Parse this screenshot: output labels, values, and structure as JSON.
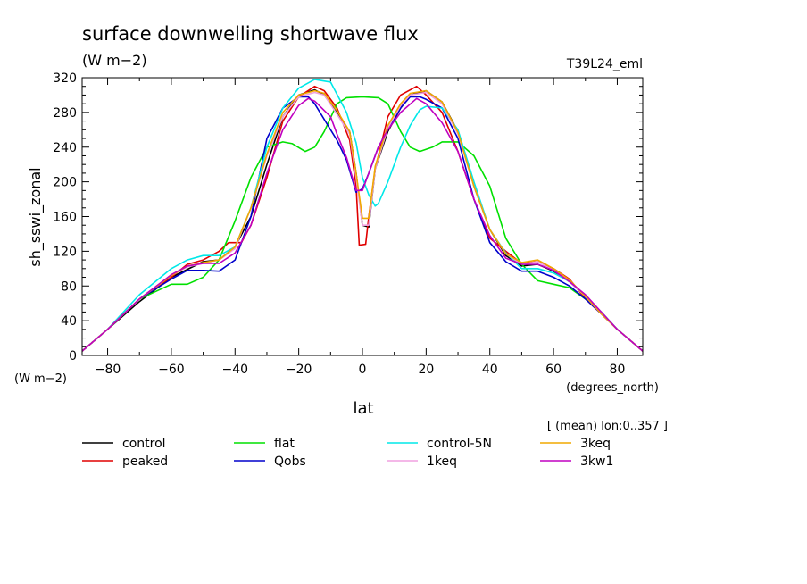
{
  "title": "surface downwelling shortwave flux",
  "units": "(W m−2)",
  "run_id": "T39L24_eml",
  "ylabel": "sh_sswi_zonal",
  "y_units": "(W m−2)",
  "xlabel": "lat",
  "x_units": "(degrees_north)",
  "mean_note": "[ (mean) lon:0..357 ]",
  "chart_data": {
    "type": "line",
    "title": "surface downwelling shortwave flux",
    "xlabel": "lat",
    "ylabel": "sh_sswi_zonal",
    "xlim": [
      -88,
      88
    ],
    "ylim": [
      0,
      320
    ],
    "xticks": [
      -80,
      -60,
      -40,
      -20,
      0,
      20,
      40,
      60,
      80
    ],
    "yticks": [
      0,
      40,
      80,
      120,
      160,
      200,
      240,
      280,
      320
    ],
    "grid": false,
    "legend_position": "bottom",
    "series": [
      {
        "name": "control",
        "color": "#000000",
        "x": [
          -88,
          -80,
          -70,
          -60,
          -50,
          -45,
          -40,
          -35,
          -30,
          -25,
          -20,
          -15,
          -12,
          -8,
          -4,
          -2,
          0,
          2,
          4,
          8,
          12,
          15,
          20,
          25,
          30,
          35,
          40,
          45,
          50,
          55,
          60,
          65,
          70,
          75,
          80,
          88
        ],
        "y": [
          5,
          30,
          62,
          90,
          108,
          110,
          125,
          160,
          220,
          275,
          300,
          306,
          300,
          280,
          258,
          210,
          150,
          148,
          215,
          258,
          285,
          300,
          305,
          292,
          258,
          195,
          145,
          115,
          103,
          105,
          97,
          85,
          68,
          48,
          30,
          5
        ]
      },
      {
        "name": "peaked",
        "color": "#e00000",
        "x": [
          -88,
          -80,
          -70,
          -60,
          -55,
          -50,
          -45,
          -42,
          -38,
          -35,
          -30,
          -25,
          -20,
          -15,
          -12,
          -8,
          -4,
          -2,
          -1,
          1,
          2,
          4,
          8,
          12,
          17,
          20,
          25,
          30,
          35,
          40,
          45,
          50,
          55,
          60,
          65,
          70,
          75,
          80,
          88
        ],
        "y": [
          5,
          30,
          65,
          90,
          105,
          110,
          120,
          130,
          130,
          150,
          205,
          270,
          298,
          310,
          305,
          285,
          248,
          195,
          127,
          128,
          160,
          215,
          275,
          300,
          310,
          300,
          280,
          235,
          180,
          135,
          120,
          106,
          108,
          100,
          88,
          65,
          48,
          30,
          5
        ]
      },
      {
        "name": "flat",
        "color": "#00e000",
        "x": [
          -88,
          -80,
          -70,
          -60,
          -55,
          -50,
          -45,
          -40,
          -35,
          -30,
          -25,
          -22,
          -18,
          -15,
          -12,
          -8,
          -5,
          0,
          5,
          8,
          12,
          15,
          18,
          22,
          25,
          30,
          35,
          40,
          45,
          50,
          55,
          60,
          65,
          70,
          75,
          80,
          88
        ],
        "y": [
          5,
          30,
          65,
          82,
          82,
          90,
          110,
          155,
          205,
          240,
          246,
          244,
          235,
          240,
          258,
          290,
          297,
          298,
          297,
          290,
          258,
          240,
          235,
          240,
          246,
          246,
          230,
          195,
          135,
          105,
          86,
          82,
          78,
          65,
          50,
          30,
          5
        ]
      },
      {
        "name": "Qobs",
        "color": "#0000cc",
        "x": [
          -88,
          -80,
          -70,
          -60,
          -55,
          -50,
          -45,
          -40,
          -35,
          -30,
          -25,
          -20,
          -17,
          -15,
          -10,
          -8,
          -5,
          -2,
          0,
          2,
          5,
          8,
          12,
          15,
          18,
          20,
          25,
          30,
          35,
          40,
          45,
          50,
          55,
          60,
          65,
          70,
          75,
          80,
          88
        ],
        "y": [
          5,
          30,
          65,
          88,
          98,
          98,
          97,
          110,
          160,
          250,
          285,
          298,
          298,
          290,
          260,
          248,
          225,
          188,
          192,
          210,
          240,
          260,
          285,
          298,
          298,
          295,
          285,
          250,
          180,
          130,
          108,
          97,
          97,
          90,
          80,
          65,
          48,
          30,
          5
        ]
      },
      {
        "name": "control-5N",
        "color": "#00e8e8",
        "x": [
          -88,
          -80,
          -70,
          -60,
          -55,
          -50,
          -45,
          -40,
          -35,
          -30,
          -25,
          -20,
          -15,
          -10,
          -5,
          -2,
          0,
          2,
          4,
          5,
          8,
          12,
          15,
          18,
          20,
          25,
          30,
          35,
          40,
          45,
          50,
          55,
          60,
          65,
          70,
          75,
          80,
          88
        ],
        "y": [
          5,
          30,
          70,
          100,
          110,
          115,
          115,
          125,
          170,
          240,
          285,
          308,
          318,
          315,
          280,
          245,
          205,
          185,
          172,
          175,
          200,
          240,
          265,
          283,
          287,
          285,
          260,
          200,
          145,
          118,
          100,
          100,
          95,
          85,
          68,
          50,
          30,
          5
        ]
      },
      {
        "name": "1keq",
        "color": "#f0a0e0",
        "x": [
          -88,
          -80,
          -70,
          -60,
          -55,
          -50,
          -45,
          -40,
          -35,
          -30,
          -25,
          -20,
          -15,
          -12,
          -8,
          -4,
          -2,
          0,
          2,
          4,
          8,
          12,
          15,
          20,
          25,
          30,
          35,
          40,
          45,
          50,
          55,
          60,
          65,
          70,
          75,
          80,
          88
        ],
        "y": [
          5,
          30,
          65,
          92,
          102,
          106,
          110,
          123,
          170,
          230,
          275,
          298,
          303,
          300,
          278,
          255,
          205,
          150,
          150,
          215,
          262,
          288,
          300,
          303,
          290,
          255,
          195,
          145,
          117,
          105,
          108,
          98,
          85,
          68,
          48,
          30,
          5
        ]
      },
      {
        "name": "3keq",
        "color": "#f0a800",
        "x": [
          -88,
          -80,
          -70,
          -60,
          -55,
          -50,
          -45,
          -40,
          -35,
          -30,
          -25,
          -20,
          -15,
          -12,
          -8,
          -4,
          -2,
          0,
          2,
          4,
          8,
          12,
          15,
          20,
          25,
          30,
          35,
          40,
          45,
          50,
          55,
          60,
          65,
          70,
          75,
          80,
          88
        ],
        "y": [
          5,
          30,
          65,
          92,
          103,
          107,
          110,
          125,
          170,
          232,
          280,
          300,
          305,
          302,
          282,
          258,
          210,
          158,
          158,
          218,
          265,
          290,
          302,
          305,
          292,
          257,
          195,
          145,
          117,
          107,
          110,
          100,
          87,
          68,
          48,
          30,
          5
        ]
      },
      {
        "name": "3kw1",
        "color": "#c000c0",
        "x": [
          -88,
          -80,
          -70,
          -60,
          -55,
          -50,
          -45,
          -40,
          -35,
          -30,
          -25,
          -20,
          -17,
          -15,
          -10,
          -8,
          -5,
          -2,
          0,
          2,
          5,
          8,
          12,
          17,
          20,
          25,
          30,
          35,
          40,
          45,
          50,
          55,
          60,
          65,
          70,
          75,
          80,
          88
        ],
        "y": [
          5,
          30,
          65,
          93,
          103,
          106,
          106,
          118,
          150,
          210,
          260,
          288,
          296,
          293,
          275,
          255,
          228,
          190,
          190,
          210,
          240,
          260,
          280,
          296,
          290,
          268,
          235,
          180,
          138,
          112,
          105,
          105,
          98,
          85,
          70,
          50,
          30,
          5
        ]
      }
    ]
  }
}
